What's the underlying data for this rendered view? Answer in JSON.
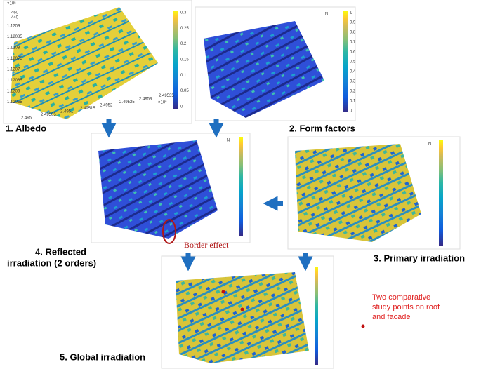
{
  "panels": [
    {
      "label": "1. Albedo",
      "y_axis_exponent": "×10⁶",
      "x_axis_exponent": "×10⁶",
      "z_ticks": [
        "460",
        "440"
      ],
      "y_ticks": [
        "1.1209",
        "1.12085",
        "1.1208",
        "1.12075",
        "1.1207",
        "1.12065",
        "1.1206",
        "1.12055"
      ],
      "x_ticks": [
        "2.495",
        "2.49505",
        "2.4951",
        "2.49515",
        "2.4952",
        "2.49525",
        "2.4953",
        "2.49535"
      ],
      "colorbar_ticks": [
        "0.3",
        "0.25",
        "0.2",
        "0.15",
        "0.1",
        "0.05",
        "0"
      ]
    },
    {
      "label": "2. Form factors",
      "compass": "N",
      "colorbar_ticks": [
        "1",
        "0.9",
        "0.8",
        "0.7",
        "0.6",
        "0.5",
        "0.4",
        "0.3",
        "0.2",
        "0.1",
        "0"
      ]
    },
    {
      "label": "3. Primary irradiation",
      "compass": "N"
    },
    {
      "label_lines": [
        "4. Reflected",
        "irradiation (2 orders)"
      ],
      "compass": "N",
      "annotation": "Border effect"
    },
    {
      "label": "5. Global irradiation"
    }
  ],
  "note_lines": [
    "Two comparative",
    "study points on roof",
    "and facade"
  ]
}
